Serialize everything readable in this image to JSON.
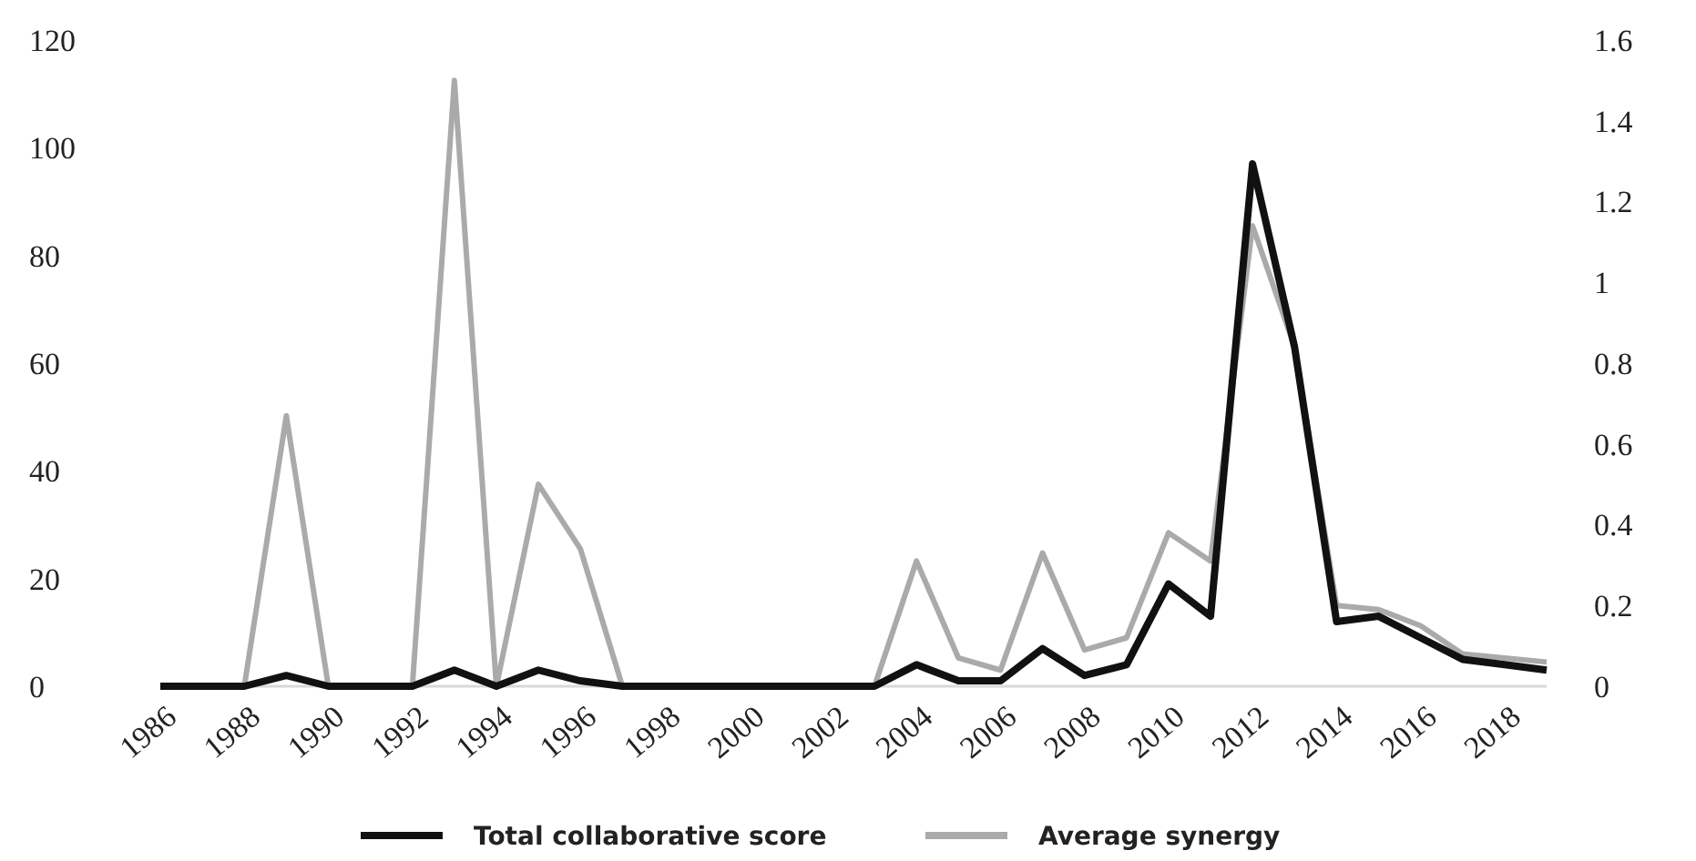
{
  "chart_data": {
    "type": "line",
    "categories": [
      "1986",
      null,
      "1988",
      null,
      "1990",
      null,
      "1992",
      null,
      "1994",
      null,
      "1996",
      null,
      "1998",
      null,
      "2000",
      null,
      "2002",
      null,
      "2004",
      null,
      "2006",
      null,
      "2008",
      null,
      "2010",
      null,
      "2012",
      null,
      "2014",
      null,
      "2016",
      null,
      "2018",
      null
    ],
    "series": [
      {
        "name": "Total collaborative score",
        "color": "#111111",
        "values": [
          0,
          0,
          0,
          2,
          0,
          0,
          0,
          3,
          0,
          3,
          1,
          0,
          0,
          0,
          0,
          0,
          0,
          0,
          4,
          1,
          1,
          7,
          2,
          4,
          19,
          13,
          97,
          63,
          12,
          13,
          9,
          5,
          4,
          3
        ]
      },
      {
        "name": "Average synergy",
        "color": "#aaaaaa",
        "axis": "y2",
        "values": [
          0,
          0,
          0,
          0.67,
          0,
          0,
          0,
          1.5,
          0,
          0.5,
          0.34,
          0,
          0,
          0,
          0,
          0,
          0,
          0,
          0.31,
          0.07,
          0.04,
          0.33,
          0.09,
          0.12,
          0.38,
          0.31,
          1.14,
          0.84,
          0.2,
          0.19,
          0.15,
          0.08,
          0.07,
          0.06
        ]
      }
    ],
    "ylim": [
      0,
      120
    ],
    "yticks": [
      0,
      20,
      40,
      60,
      80,
      100,
      120
    ],
    "y2lim": [
      0,
      1.6
    ],
    "y2ticks": [
      0,
      0.2,
      0.4,
      0.6,
      0.8,
      1,
      1.2,
      1.4,
      1.6
    ],
    "legend": "bottom",
    "grid": false,
    "marker": "none",
    "line_style": "solid"
  }
}
